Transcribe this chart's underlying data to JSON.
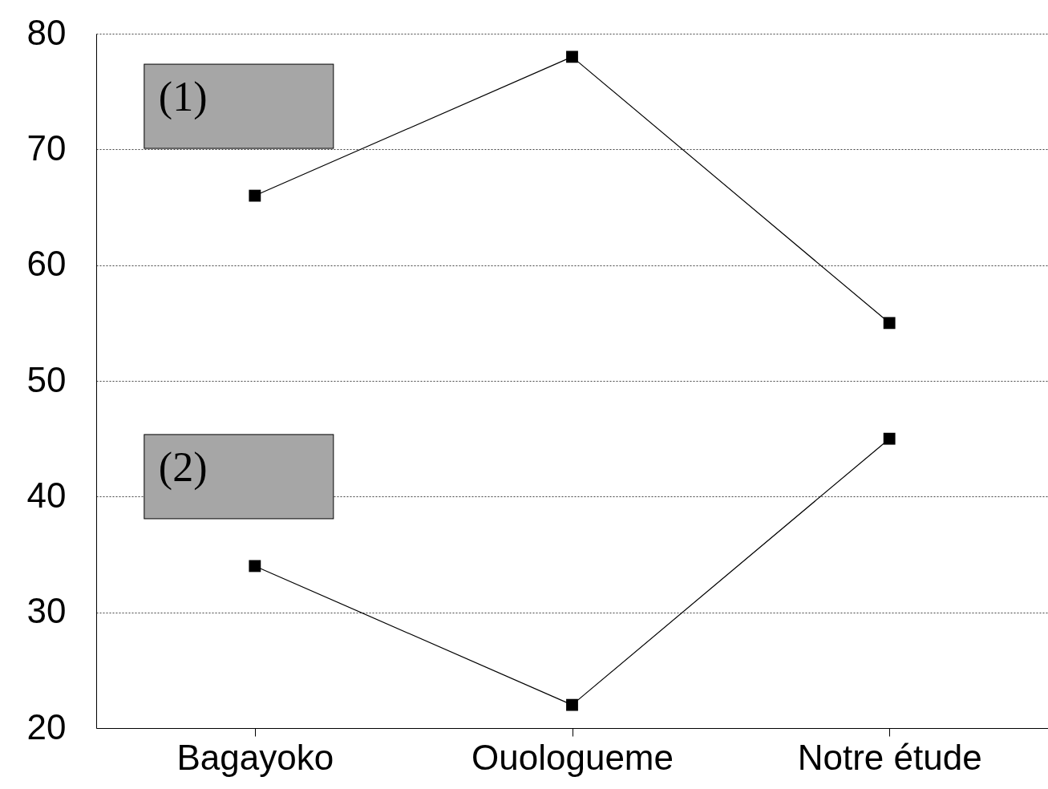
{
  "chart_data": {
    "type": "line",
    "categories": [
      "Bagayoko",
      "Ouologueme",
      "Notre étude"
    ],
    "series": [
      {
        "name": "(1)",
        "color": "#000000",
        "values": [
          66,
          78,
          55
        ]
      },
      {
        "name": "(2)",
        "color": "#000000",
        "values": [
          34,
          22,
          45
        ]
      }
    ],
    "ylim": [
      20,
      80
    ],
    "yticks": [
      20,
      30,
      40,
      50,
      60,
      70,
      80
    ],
    "grid": "y",
    "marker": "square",
    "line_style": "solid",
    "legend": false
  }
}
